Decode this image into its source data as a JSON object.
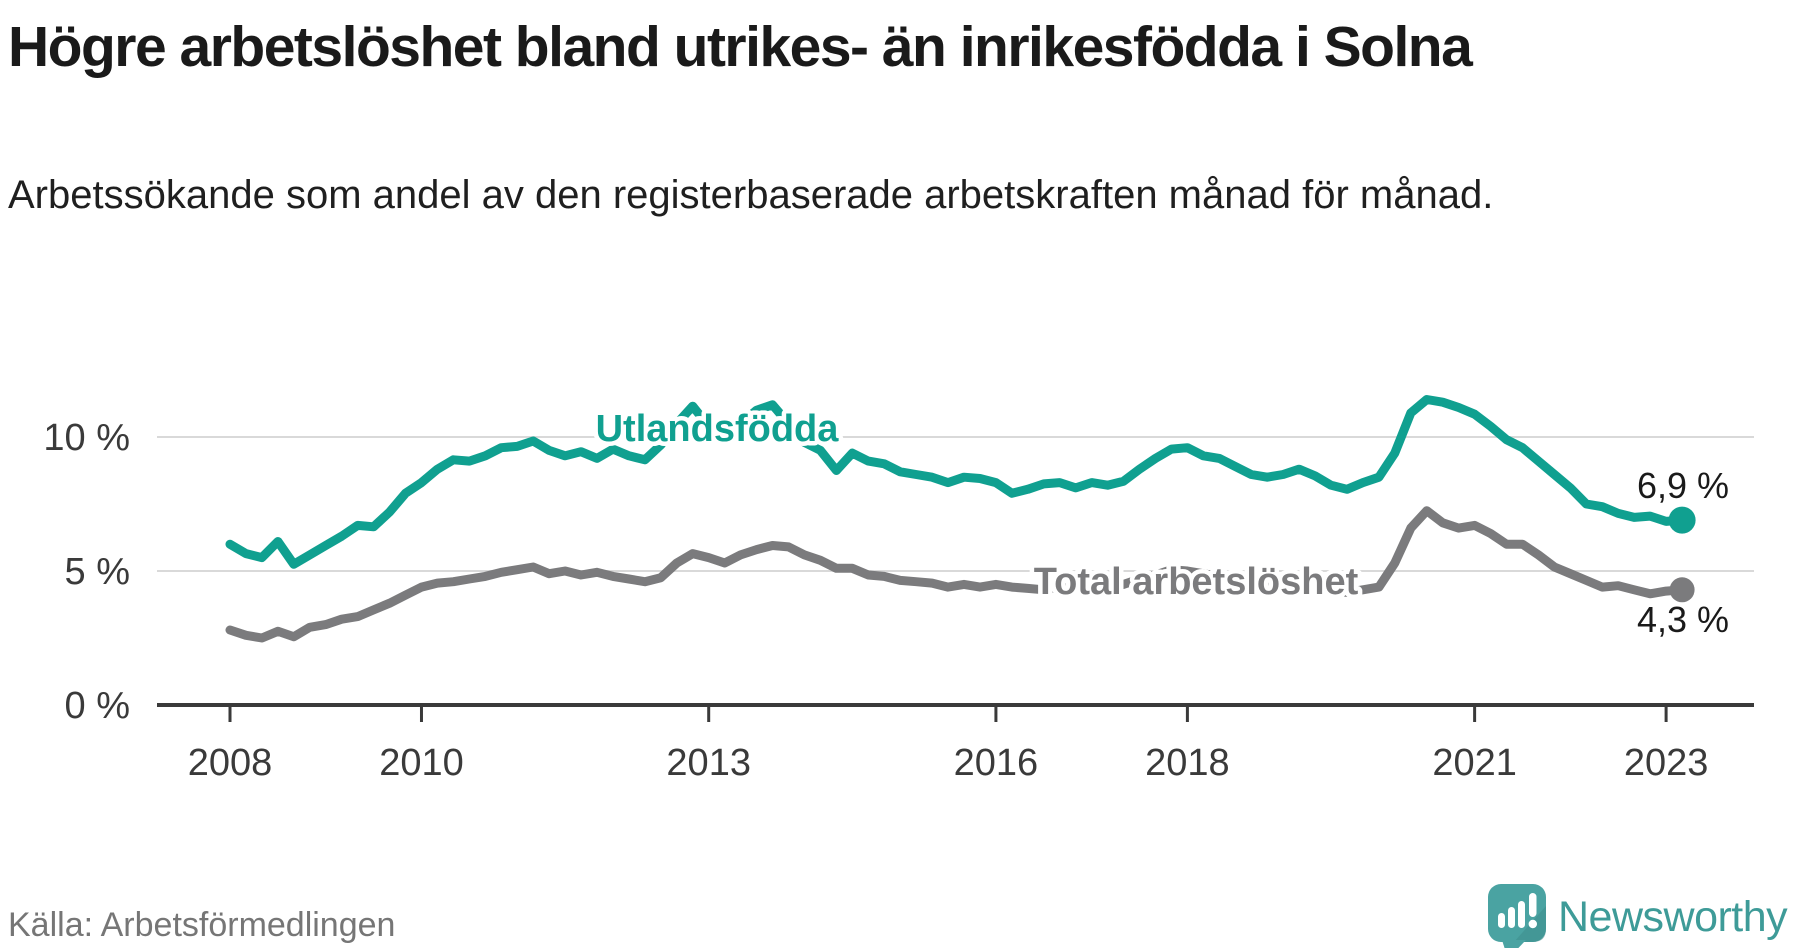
{
  "title": "Högre arbetslöshet bland utrikes- än inrikesfödda i Solna",
  "subtitle": "Arbetssökande som andel av den registerbaserade arbetskraften månad för månad.",
  "source": "Källa: Arbetsförmedlingen",
  "branding": {
    "logo_name": "Newsworthy",
    "logo_text_color": "#3e9b98",
    "logo_icon_color": "#4aa3a2",
    "logo_icon_shade_color": "#3e8e8d",
    "logo_icon_glyph": "bar-chart-with-exclamation-in-speech-bubble"
  },
  "colors": {
    "grid": "#d9d9d9",
    "axis": "#3a3a3a",
    "text_dark": "#1a1a1a",
    "source_gray": "#767676"
  },
  "chart_data": {
    "type": "line",
    "title": "Högre arbetslöshet bland utrikes- än inrikesfödda i Solna",
    "xlabel": "",
    "ylabel": "",
    "x_unit": "year (monthly data)",
    "x_start": 2008.0,
    "x_end": 2023.17,
    "x_step_years": 0.1667,
    "xticks": [
      2008,
      2010,
      2013,
      2016,
      2018,
      2021,
      2023
    ],
    "ytick_labels": [
      "0 %",
      "5 %",
      "10 %"
    ],
    "ytick_values": [
      0,
      5,
      10
    ],
    "ylim": [
      0,
      12.4
    ],
    "grid": "horizontal",
    "legend": "inline-labels",
    "series": [
      {
        "name": "Utlandsfödda",
        "color": "#10a090",
        "end_label": "6,9 %",
        "end_value": 6.9,
        "values": [
          6.0,
          5.65,
          5.5,
          6.1,
          5.25,
          5.6,
          5.95,
          6.3,
          6.7,
          6.65,
          7.2,
          7.9,
          8.3,
          8.8,
          9.15,
          9.1,
          9.3,
          9.6,
          9.65,
          9.85,
          9.5,
          9.3,
          9.45,
          9.2,
          9.55,
          9.3,
          9.15,
          9.7,
          10.5,
          11.15,
          10.4,
          10.1,
          10.5,
          11.0,
          11.2,
          10.5,
          9.8,
          9.5,
          8.75,
          9.4,
          9.1,
          9.0,
          8.7,
          8.6,
          8.5,
          8.3,
          8.5,
          8.45,
          8.3,
          7.9,
          8.05,
          8.25,
          8.3,
          8.1,
          8.3,
          8.2,
          8.35,
          8.8,
          9.2,
          9.55,
          9.6,
          9.3,
          9.2,
          8.9,
          8.6,
          8.5,
          8.6,
          8.8,
          8.55,
          8.2,
          8.05,
          8.3,
          8.5,
          9.4,
          10.9,
          11.4,
          11.3,
          11.1,
          10.85,
          10.4,
          9.9,
          9.6,
          9.1,
          8.6,
          8.1,
          7.5,
          7.4,
          7.15,
          7.0,
          7.05,
          6.85,
          6.9
        ]
      },
      {
        "name": "Total arbetslöshet",
        "color": "#7b7b7d",
        "end_label": "4,3 %",
        "end_value": 4.3,
        "values": [
          2.8,
          2.6,
          2.5,
          2.75,
          2.55,
          2.9,
          3.0,
          3.2,
          3.3,
          3.55,
          3.8,
          4.1,
          4.4,
          4.55,
          4.6,
          4.7,
          4.8,
          4.95,
          5.05,
          5.15,
          4.9,
          5.0,
          4.85,
          4.95,
          4.8,
          4.7,
          4.6,
          4.75,
          5.3,
          5.65,
          5.5,
          5.3,
          5.6,
          5.8,
          5.95,
          5.9,
          5.6,
          5.4,
          5.1,
          5.1,
          4.85,
          4.8,
          4.65,
          4.6,
          4.55,
          4.4,
          4.5,
          4.4,
          4.5,
          4.4,
          4.35,
          4.3,
          4.4,
          4.35,
          4.3,
          4.4,
          4.5,
          4.7,
          4.85,
          5.05,
          5.0,
          4.9,
          4.8,
          4.65,
          4.5,
          4.4,
          4.35,
          4.5,
          4.4,
          4.3,
          4.2,
          4.3,
          4.4,
          5.3,
          6.6,
          7.25,
          6.8,
          6.6,
          6.7,
          6.4,
          6.0,
          6.0,
          5.6,
          5.15,
          4.9,
          4.65,
          4.4,
          4.45,
          4.3,
          4.15,
          4.25,
          4.3
        ]
      }
    ]
  }
}
